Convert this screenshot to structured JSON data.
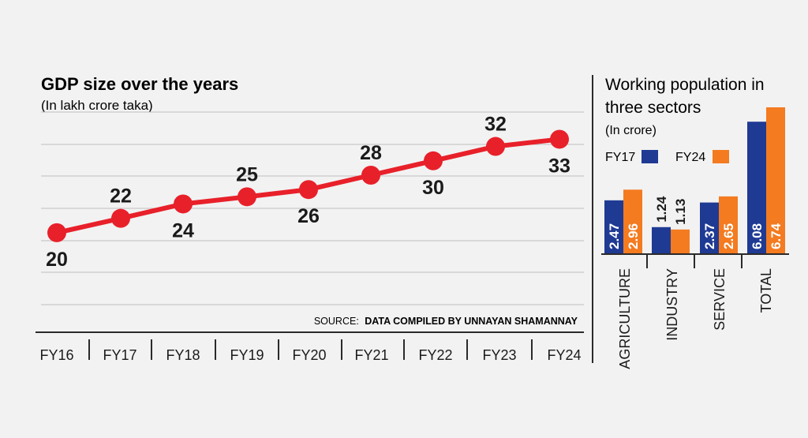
{
  "colors": {
    "background": "#f2f2f2",
    "line": "#e8202a",
    "fy17": "#1f3a93",
    "fy24": "#f47b20",
    "text": "#1a1a1a",
    "grid": "#bfbfbf"
  },
  "source": {
    "prefix": "SOURCE:",
    "text": "DATA COMPILED BY UNNAYAN SHAMANNAY"
  },
  "chart_data": [
    {
      "type": "line",
      "title": "GDP size over the years",
      "subtitle": "(In lakh crore taka)",
      "categories": [
        "FY16",
        "FY17",
        "FY18",
        "FY19",
        "FY20",
        "FY21",
        "FY22",
        "FY23",
        "FY24"
      ],
      "values": [
        20,
        22,
        24,
        25,
        26,
        28,
        30,
        32,
        33
      ],
      "ylim": [
        10,
        37
      ],
      "grid": true
    },
    {
      "type": "bar",
      "title": "Working population in three sectors",
      "subtitle": "(In crore)",
      "categories": [
        "AGRICULTURE",
        "INDUSTRY",
        "SERVICE",
        "TOTAL"
      ],
      "series": [
        {
          "name": "FY17",
          "values": [
            2.47,
            1.24,
            2.37,
            6.08
          ]
        },
        {
          "name": "FY24",
          "values": [
            2.96,
            1.13,
            2.65,
            6.74
          ]
        }
      ],
      "legend": "top"
    }
  ]
}
